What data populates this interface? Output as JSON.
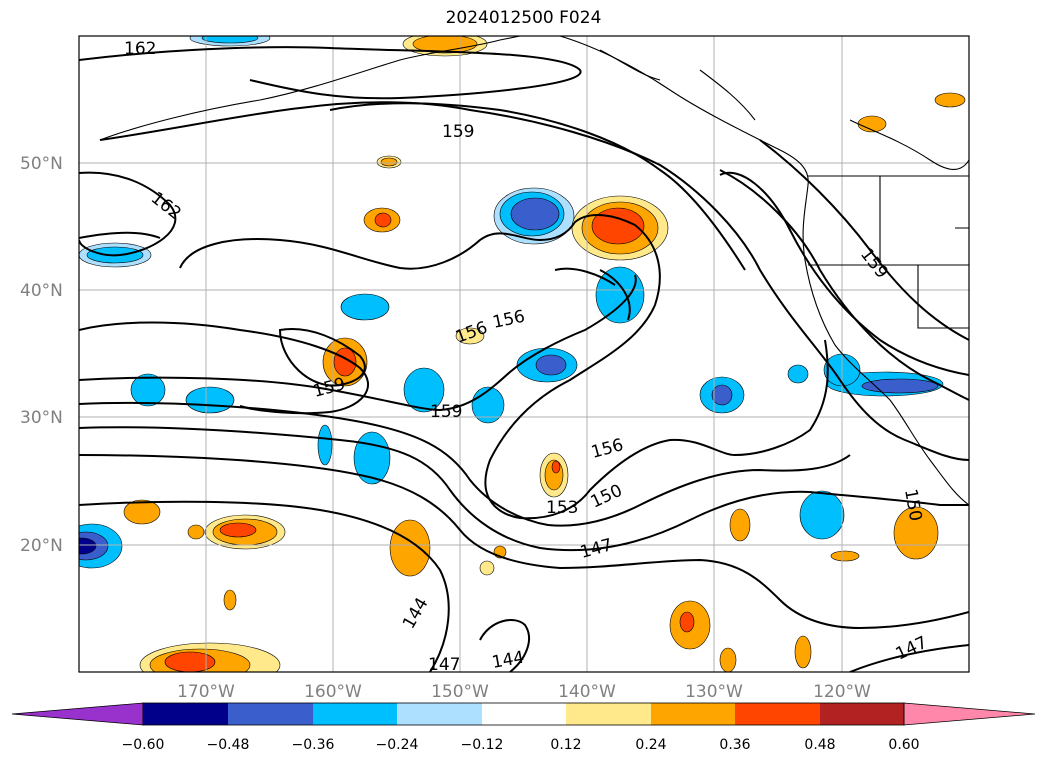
{
  "title": "2024012500 F024",
  "map": {
    "lat_labels": [
      "50°N",
      "40°N",
      "30°N",
      "20°N"
    ],
    "lon_labels": [
      "170°W",
      "160°W",
      "150°W",
      "140°W",
      "130°W",
      "120°W"
    ],
    "contour_labels": [
      "162",
      "159",
      "162",
      "159",
      "156",
      "156",
      "159",
      "159",
      "156",
      "150",
      "153",
      "147",
      "144",
      "147",
      "144",
      "150",
      "147"
    ]
  },
  "colorbar": {
    "ticks": [
      "−0.60",
      "−0.48",
      "−0.36",
      "−0.24",
      "−0.12",
      "0.12",
      "0.24",
      "0.36",
      "0.48",
      "0.60"
    ],
    "colors": [
      "#9932CC",
      "#00008B",
      "#3A5FCD",
      "#00BFFF",
      "#ADDFFF",
      "#FFFFFF",
      "#FFE98A",
      "#FFA500",
      "#FF4500",
      "#B22222",
      "#FF88AA"
    ]
  }
}
